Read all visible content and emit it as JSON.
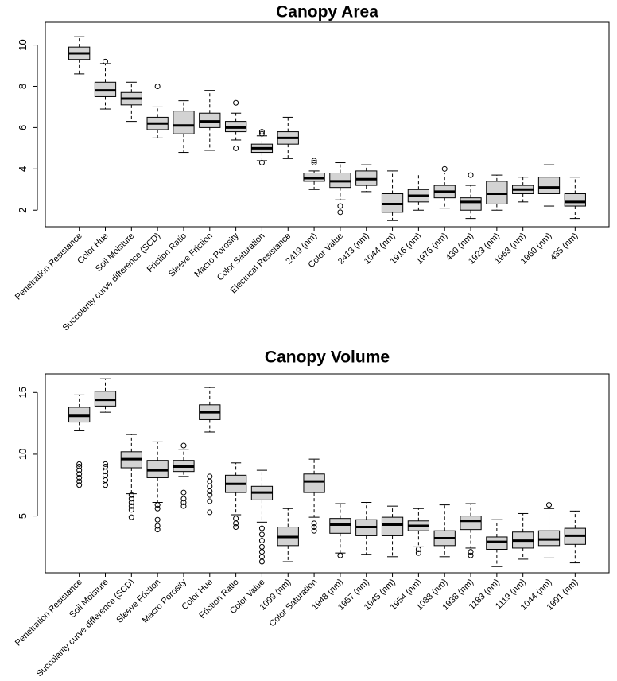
{
  "chart_data": [
    {
      "type": "box",
      "title": "Canopy Area",
      "box_color": "#d3d3d3",
      "categories": [
        "Penetration Resistance",
        "Color Hue",
        "Soil Moisture",
        "Succolarity curve difference (SCD)",
        "Friction Ratio",
        "Sleeve Friction",
        "Macro Porosity",
        "Color Saturation",
        "Electrical Resistance",
        "2419 (nm)",
        "Color Value",
        "2413 (nm)",
        "1044 (nm)",
        "1916 (nm)",
        "1976 (nm)",
        "430 (nm)",
        "1923 (nm)",
        "1963 (nm)",
        "1960 (nm)",
        "435 (nm)"
      ],
      "whisker_low": [
        8.6,
        6.9,
        6.3,
        5.5,
        4.8,
        4.9,
        5.4,
        4.4,
        4.5,
        3.0,
        2.5,
        2.9,
        1.5,
        2.0,
        2.1,
        1.6,
        2.0,
        2.4,
        2.2,
        1.6
      ],
      "q1": [
        9.3,
        7.5,
        7.1,
        5.9,
        5.7,
        6.0,
        5.8,
        4.8,
        5.2,
        3.4,
        3.1,
        3.2,
        1.9,
        2.4,
        2.6,
        2.0,
        2.3,
        2.8,
        2.8,
        2.2
      ],
      "median": [
        9.6,
        7.8,
        7.4,
        6.2,
        6.1,
        6.3,
        6.0,
        5.0,
        5.5,
        3.55,
        3.4,
        3.5,
        2.3,
        2.7,
        2.9,
        2.4,
        2.8,
        3.0,
        3.1,
        2.4
      ],
      "q3": [
        9.9,
        8.2,
        7.7,
        6.5,
        6.8,
        6.7,
        6.3,
        5.2,
        5.8,
        3.8,
        3.8,
        3.9,
        2.8,
        3.0,
        3.2,
        2.6,
        3.4,
        3.2,
        3.6,
        2.8
      ],
      "whisker_high": [
        10.4,
        9.1,
        8.2,
        7.0,
        7.3,
        7.8,
        6.7,
        5.6,
        6.5,
        3.9,
        4.3,
        4.2,
        3.9,
        3.8,
        3.8,
        3.2,
        3.7,
        3.6,
        4.2,
        3.6
      ],
      "outliers": [
        [],
        [
          9.2
        ],
        [],
        [
          8.0
        ],
        [],
        [],
        [
          7.2,
          5.0
        ],
        [
          5.7,
          5.8,
          4.3
        ],
        [],
        [
          4.4,
          4.3
        ],
        [
          2.2,
          1.9
        ],
        [],
        [],
        [],
        [
          4.0
        ],
        [
          3.7
        ],
        [],
        [],
        [],
        []
      ],
      "ylim": [
        1.2,
        11.1
      ],
      "yticks": [
        2,
        4,
        6,
        8,
        10
      ]
    },
    {
      "type": "box",
      "title": "Canopy Volume",
      "box_color": "#d3d3d3",
      "categories": [
        "Penetration Resistance",
        "Soil Moisture",
        "Succolarity curve difference (SCD)",
        "Sleeve Friction",
        "Macro Porosity",
        "Color Hue",
        "Friction Ratio",
        "Color Value",
        "1099 (nm)",
        "Color Saturation",
        "1948 (nm)",
        "1957 (nm)",
        "1945 (nm)",
        "1954 (nm)",
        "1038 (nm)",
        "1938 (nm)",
        "1183 (nm)",
        "1119 (nm)",
        "1044 (nm)",
        "1991 (nm)"
      ],
      "whisker_low": [
        11.9,
        13.4,
        6.8,
        6.1,
        8.2,
        11.8,
        5.1,
        4.5,
        1.3,
        4.9,
        2.0,
        1.9,
        1.7,
        2.5,
        1.7,
        2.4,
        0.9,
        1.5,
        1.6,
        1.2
      ],
      "q1": [
        12.6,
        13.9,
        8.9,
        8.1,
        8.6,
        12.8,
        6.9,
        6.3,
        2.6,
        6.9,
        3.6,
        3.4,
        3.4,
        3.8,
        2.6,
        3.9,
        2.3,
        2.4,
        2.6,
        2.7
      ],
      "median": [
        13.1,
        14.4,
        9.6,
        8.7,
        9.0,
        13.4,
        7.6,
        6.9,
        3.3,
        7.8,
        4.3,
        4.1,
        4.3,
        4.2,
        3.2,
        4.6,
        2.9,
        3.0,
        3.1,
        3.4
      ],
      "q3": [
        13.8,
        15.1,
        10.2,
        9.5,
        9.5,
        14.0,
        8.3,
        7.4,
        4.1,
        8.4,
        4.8,
        4.7,
        4.9,
        4.6,
        3.8,
        5.0,
        3.3,
        3.7,
        3.8,
        4.0
      ],
      "whisker_high": [
        14.8,
        16.1,
        11.6,
        11.0,
        10.4,
        15.4,
        9.3,
        8.7,
        5.6,
        9.6,
        6.0,
        6.1,
        5.8,
        5.6,
        5.9,
        6.0,
        4.7,
        5.2,
        5.6,
        5.4
      ],
      "outliers": [
        [
          7.5,
          7.8,
          8.1,
          8.4,
          8.7,
          9.0,
          9.2
        ],
        [
          7.5,
          7.9,
          8.3,
          8.6,
          9.0,
          9.2
        ],
        [
          4.9,
          5.5,
          5.8,
          6.1,
          6.4,
          6.7
        ],
        [
          3.9,
          4.2,
          4.7,
          5.6,
          5.9
        ],
        [
          10.7,
          5.8,
          6.1,
          6.4,
          6.9
        ],
        [
          5.3,
          6.2,
          6.7,
          7.0,
          7.4,
          7.8,
          8.2
        ],
        [
          4.1,
          4.4,
          4.8
        ],
        [
          1.3,
          1.7,
          2.1,
          2.5,
          3.0,
          3.5,
          4.0
        ],
        [],
        [
          3.8,
          4.1,
          4.4
        ],
        [
          1.8
        ],
        [],
        [],
        [
          2.3,
          2.0
        ],
        [],
        [
          2.1,
          1.8
        ],
        [],
        [],
        [
          5.9
        ],
        []
      ],
      "ylim": [
        0.4,
        16.5
      ],
      "yticks": [
        5,
        10,
        15
      ]
    }
  ]
}
